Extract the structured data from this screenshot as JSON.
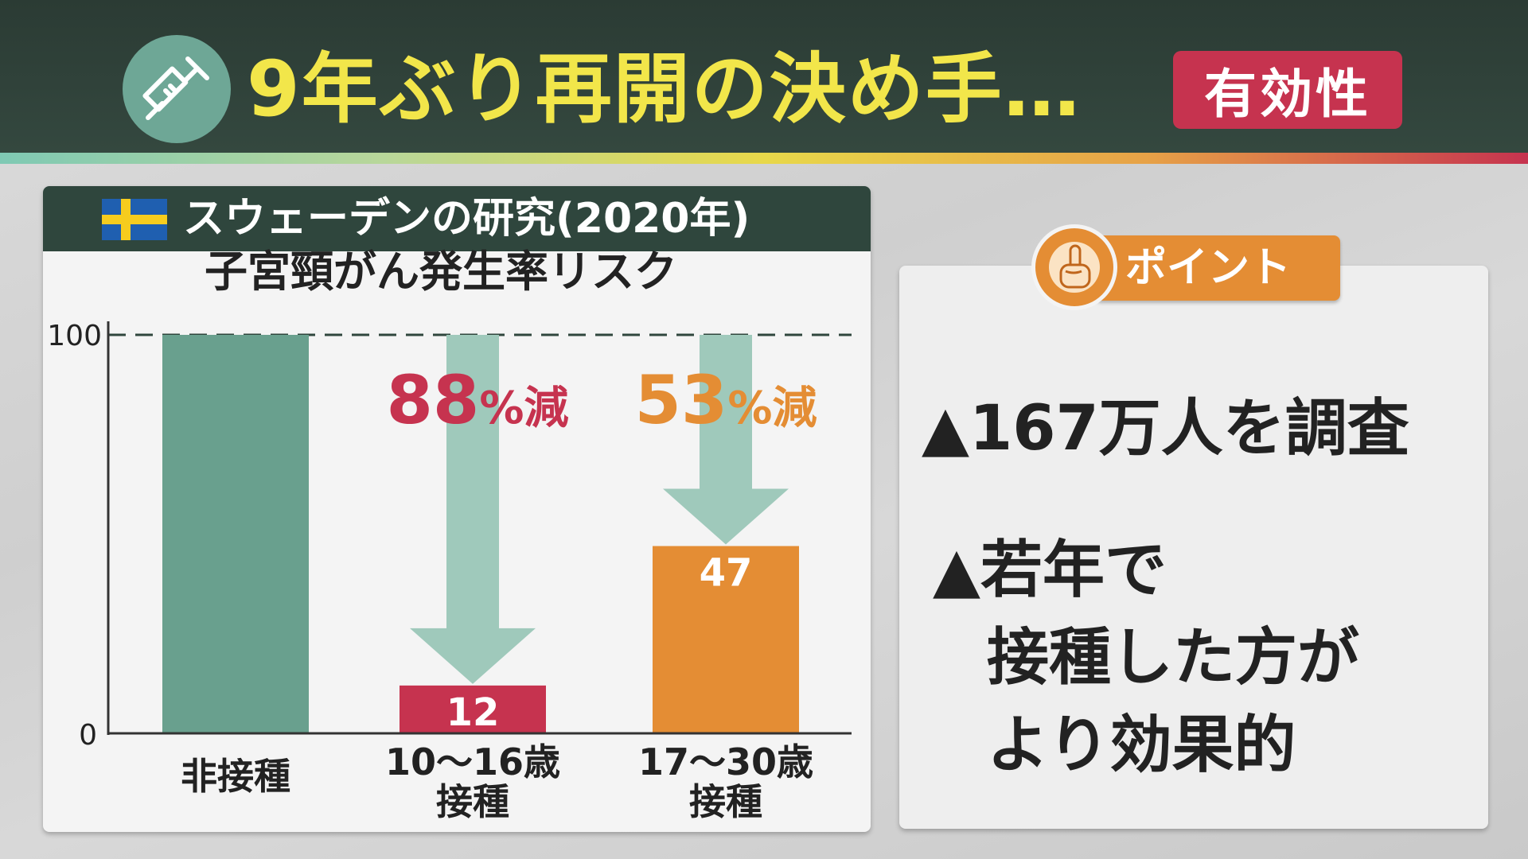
{
  "header": {
    "title": "9年ぶり再開の決め手…",
    "badge": "有効性",
    "icon": "syringe-icon"
  },
  "left_panel": {
    "title": "スウェーデンの研究(2020年)",
    "flag": "sweden-flag-icon"
  },
  "chart_data": {
    "type": "bar",
    "title": "子宮頸がん発生率リスク",
    "categories": [
      [
        "非接種"
      ],
      [
        "10〜16歳",
        "接種"
      ],
      [
        "17〜30歳",
        "接種"
      ]
    ],
    "values": [
      100,
      12,
      47
    ],
    "value_labels": [
      "",
      "12",
      "47"
    ],
    "y_ticks": [
      "100",
      "0"
    ],
    "ylim": [
      0,
      100
    ],
    "reference_line": 100,
    "annotations": [
      {
        "number": "88",
        "suffix": "%減",
        "color": "#c6334f"
      },
      {
        "number": "53",
        "suffix": "%減",
        "color": "#e48d34"
      }
    ],
    "colors": [
      "#69a08e",
      "#c6334f",
      "#e48d34"
    ],
    "arrow_color": "#9fc9bb"
  },
  "right_panel": {
    "badge": "ポイント",
    "badge_icon": "pointing-hand-icon",
    "bullets": [
      "▲167万人を調査",
      "▲若年で",
      "接種した方が",
      "より効果的"
    ]
  },
  "colors": {
    "header_bg": "#2b3b34",
    "title_yellow": "#f2e64a",
    "accent_red": "#c6334f",
    "accent_orange": "#e48d34",
    "panel_head": "#2f463d"
  }
}
